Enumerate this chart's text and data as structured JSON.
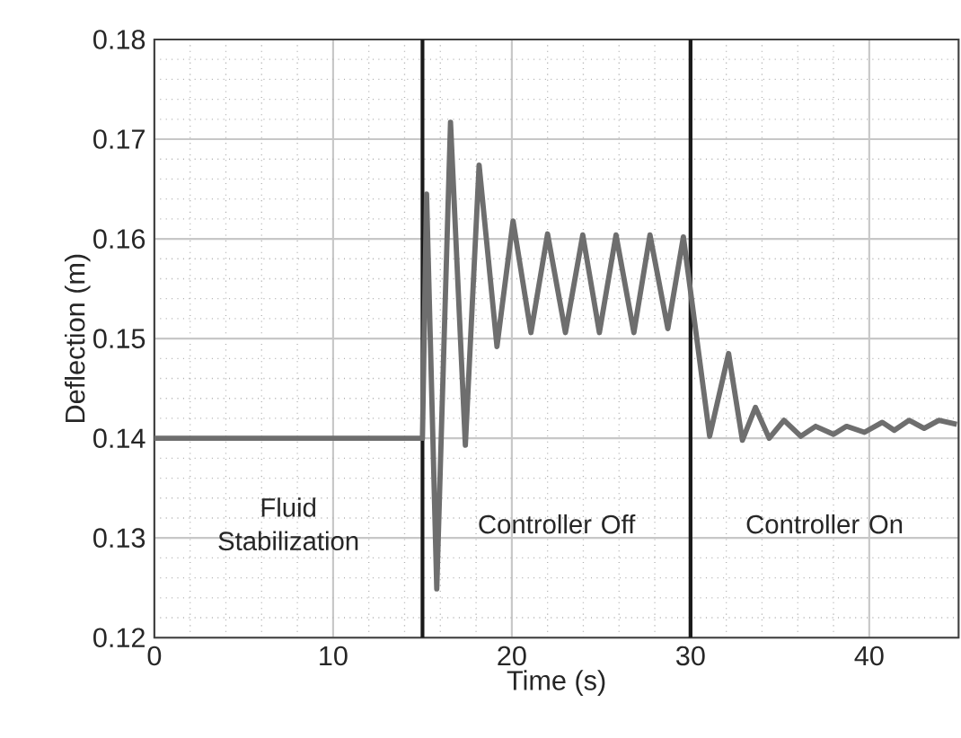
{
  "chart_data": {
    "type": "line",
    "xlabel": "Time (s)",
    "ylabel": "Deflection (m)",
    "xlim": [
      0,
      45
    ],
    "ylim": [
      0.12,
      0.18
    ],
    "xticks": [
      0,
      10,
      20,
      30,
      40
    ],
    "yticks": [
      0.12,
      0.13,
      0.14,
      0.15,
      0.16,
      0.17,
      0.18
    ],
    "grid": true,
    "marker": "none",
    "line_style": "solid",
    "x": [
      0,
      15,
      15.23,
      15.8,
      16.57,
      17.4,
      18.17,
      19.17,
      20.07,
      21.07,
      22.0,
      23.0,
      23.97,
      24.9,
      25.83,
      26.83,
      27.73,
      28.73,
      29.6,
      31.07,
      32.13,
      32.9,
      33.63,
      34.4,
      35.23,
      36.17,
      37.0,
      38.0,
      38.73,
      39.73,
      40.73,
      41.4,
      42.23,
      43.07,
      43.9,
      44.9
    ],
    "series": [
      {
        "color": "#6e6e6e",
        "values": [
          0.14,
          0.14,
          0.1645,
          0.1249,
          0.1717,
          0.1393,
          0.1674,
          0.1492,
          0.1618,
          0.1506,
          0.1605,
          0.1506,
          0.1604,
          0.1506,
          0.1604,
          0.1506,
          0.1604,
          0.151,
          0.1602,
          0.1402,
          0.1485,
          0.1398,
          0.1431,
          0.14,
          0.1418,
          0.1402,
          0.1412,
          0.1404,
          0.1412,
          0.1406,
          0.1416,
          0.1408,
          0.1418,
          0.141,
          0.1418,
          0.1414
        ]
      }
    ],
    "ref_lines": [
      {
        "axis": "x",
        "value": 15,
        "color": "#1a1a1a",
        "line_style": "solid"
      },
      {
        "axis": "x",
        "value": 30,
        "color": "#1a1a1a",
        "line_style": "solid"
      }
    ],
    "annotations": [
      "Fluid Stabilization",
      "Controller Off",
      "Controller On"
    ]
  }
}
